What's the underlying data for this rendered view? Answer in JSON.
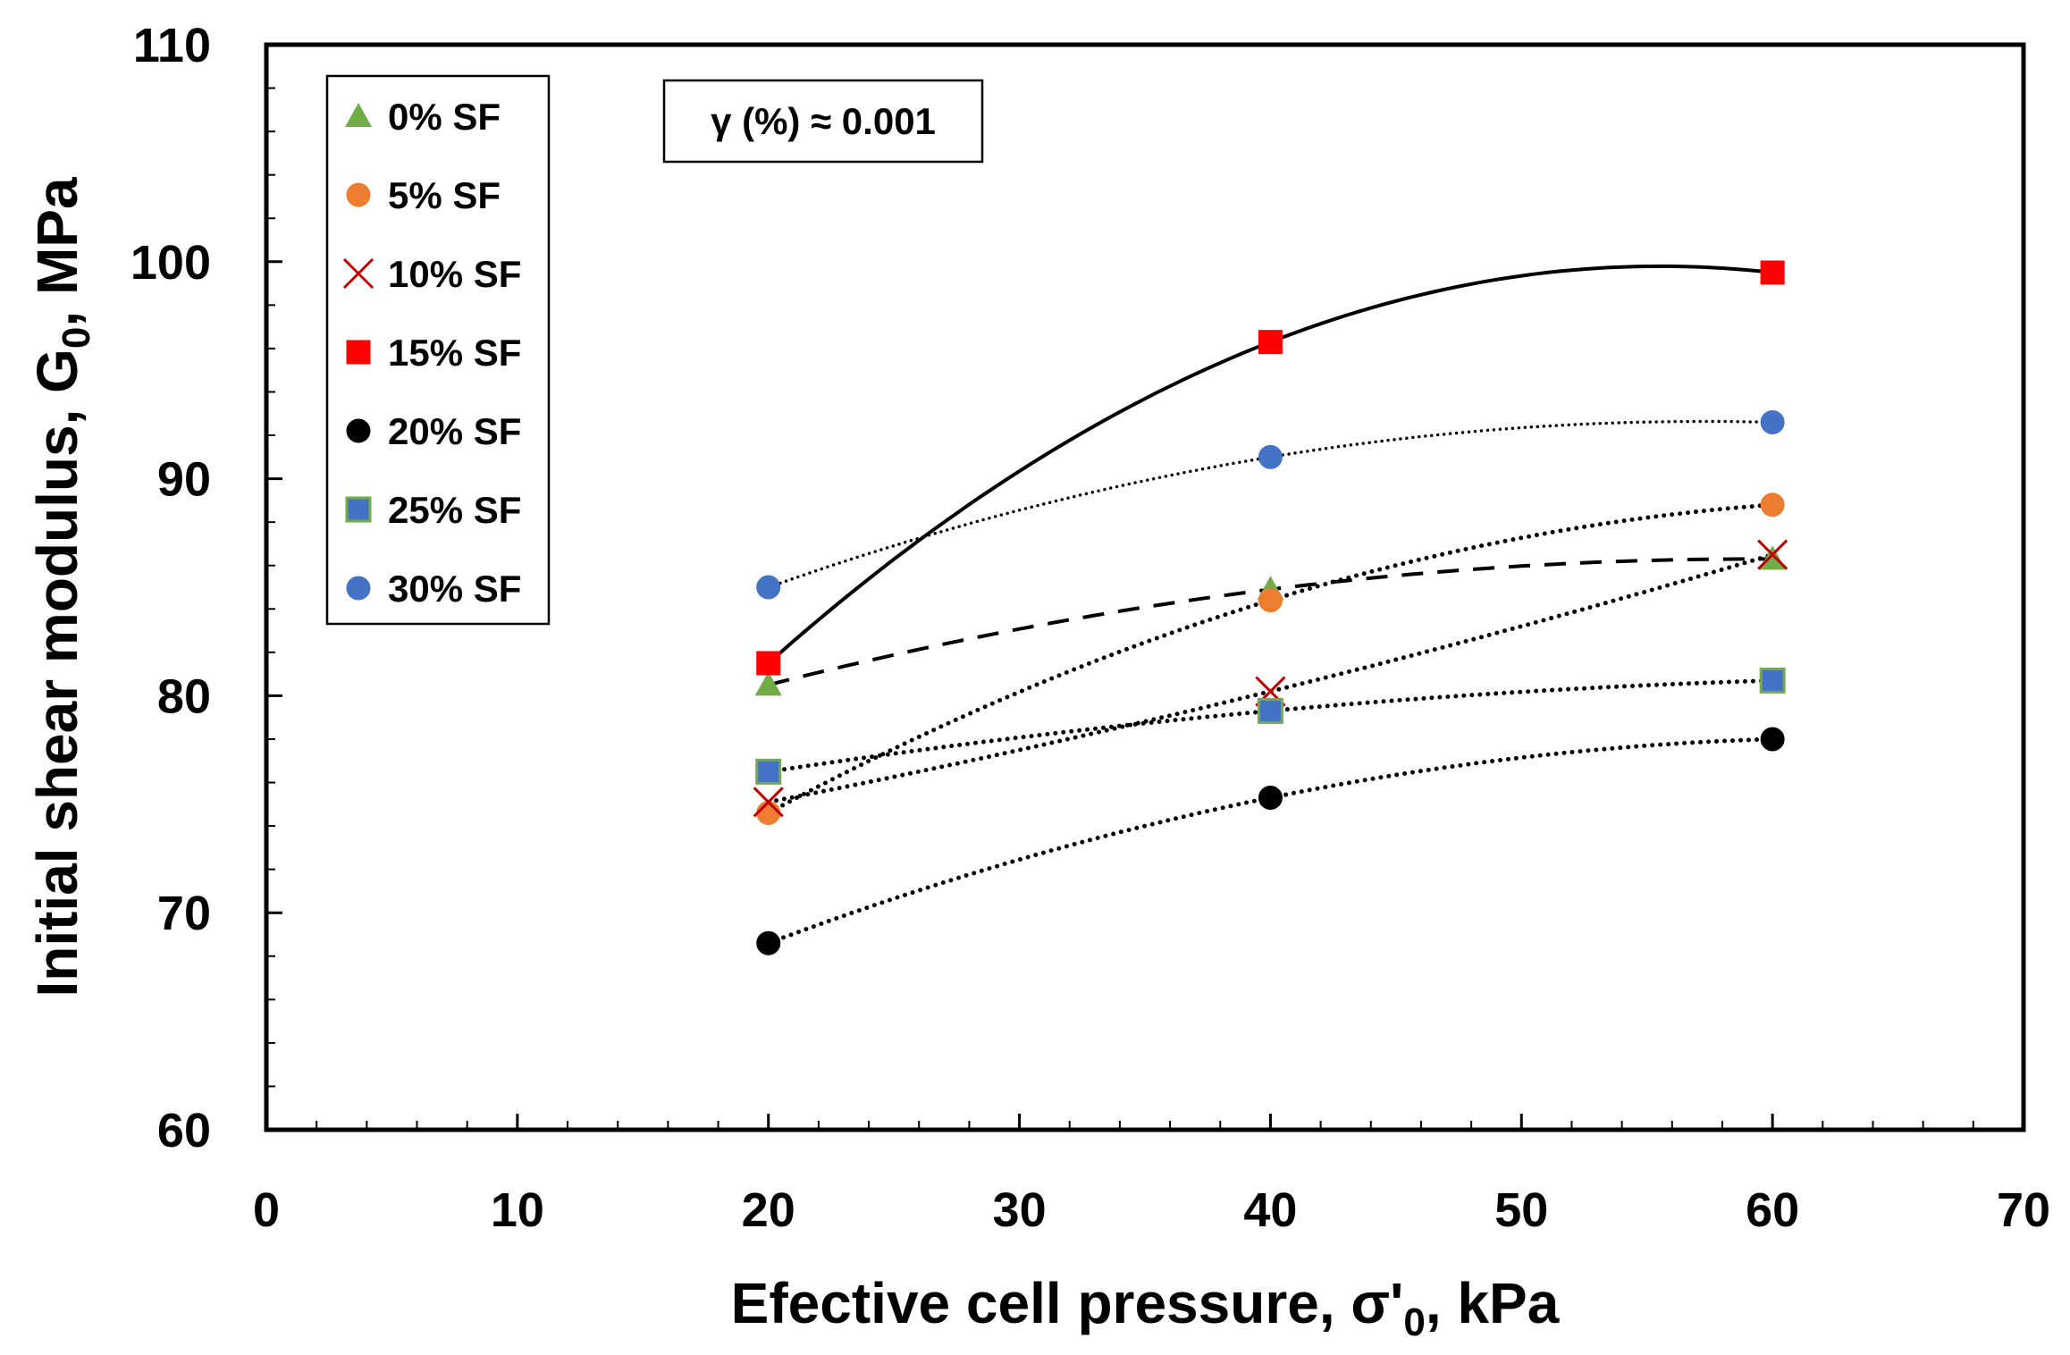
{
  "chart_data": {
    "type": "scatter",
    "title": "",
    "xlabel": "Efective cell pressure, σ'0, kPa",
    "xlabel_parts": {
      "main": "Efective cell pressure, σ'",
      "sub": "0",
      "tail": ", kPa"
    },
    "ylabel": "Initial shear modulus, G0, MPa",
    "ylabel_parts": {
      "main": "Initial shear modulus, G",
      "sub": "0",
      "tail": ", MPa"
    },
    "xlim": [
      0,
      70
    ],
    "ylim": [
      60,
      110
    ],
    "x_ticks": [
      0,
      10,
      20,
      30,
      40,
      50,
      60,
      70
    ],
    "y_ticks": [
      60,
      70,
      80,
      90,
      100,
      110
    ],
    "x_tick_labels": [
      "0",
      "10",
      "20",
      "30",
      "40",
      "50",
      "60",
      "70"
    ],
    "y_tick_labels": [
      "60",
      "70",
      "80",
      "90",
      "100",
      "110"
    ],
    "grid": false,
    "legend_position": "top-left",
    "annotation": "γ (%) ≈ 0.001",
    "series": [
      {
        "name": "0% SF",
        "marker": "triangle",
        "color": "#70AD47",
        "trendline": "dashed",
        "x": [
          20,
          40,
          60
        ],
        "y": [
          80.5,
          84.9,
          86.3
        ]
      },
      {
        "name": "5% SF",
        "marker": "circle",
        "color": "#ED7D31",
        "trendline": "dotted",
        "x": [
          20,
          40,
          60
        ],
        "y": [
          74.6,
          84.4,
          88.8
        ]
      },
      {
        "name": "10% SF",
        "marker": "x",
        "color": "#C00000",
        "trendline": "dotted",
        "x": [
          20,
          40,
          60
        ],
        "y": [
          75.1,
          80.2,
          86.5
        ]
      },
      {
        "name": "15% SF",
        "marker": "square",
        "color": "#FF0000",
        "trendline": "solid",
        "x": [
          20,
          40,
          60
        ],
        "y": [
          81.5,
          96.3,
          99.5
        ]
      },
      {
        "name": "20% SF",
        "marker": "circle",
        "color": "#000000",
        "trendline": "dotted",
        "x": [
          20,
          40,
          60
        ],
        "y": [
          68.6,
          75.3,
          78.0
        ]
      },
      {
        "name": "25% SF",
        "marker": "square",
        "color": "#4472C4",
        "edge": "#70AD47",
        "trendline": "dotted",
        "x": [
          20,
          40,
          60
        ],
        "y": [
          76.5,
          79.3,
          80.7
        ]
      },
      {
        "name": "30% SF",
        "marker": "circle",
        "color": "#4472C4",
        "trendline": "dotted-fine",
        "x": [
          20,
          40,
          60
        ],
        "y": [
          85.0,
          91.0,
          92.6
        ]
      }
    ]
  }
}
